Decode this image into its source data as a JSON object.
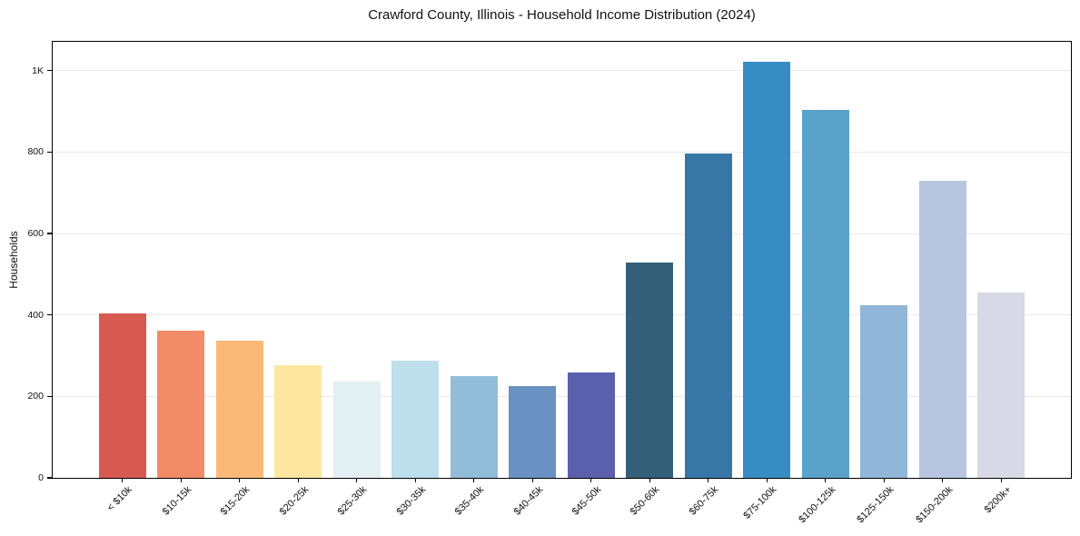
{
  "chart_data": {
    "type": "bar",
    "title": "Crawford County, Illinois - Household Income Distribution (2024)",
    "xlabel": "",
    "ylabel": "Households",
    "categories": [
      "< $10k",
      "$10-15k",
      "$15-20k",
      "$20-25k",
      "$25-30k",
      "$30-35k",
      "$35-40k",
      "$40-45k",
      "$45-50k",
      "$50-60k",
      "$60-75k",
      "$75-100k",
      "$100-125k",
      "$125-150k",
      "$150-200k",
      "$200k+"
    ],
    "values": [
      404,
      362,
      338,
      276,
      236,
      287,
      250,
      225,
      258,
      529,
      796,
      1021,
      904,
      425,
      729,
      456
    ],
    "bar_colors": [
      "#d65a52",
      "#f28b68",
      "#fbb978",
      "#fde79e",
      "#e2f0f3",
      "#bedfeb",
      "#93bcd9",
      "#6a91c2",
      "#5b60ad",
      "#335f79",
      "#3777a5",
      "#388cc4",
      "#5aa2ca",
      "#90b6d8",
      "#b7c6e0",
      "#d7d9e7"
    ],
    "yticks": [
      {
        "value": 0,
        "label": "0"
      },
      {
        "value": 200,
        "label": "200"
      },
      {
        "value": 400,
        "label": "400"
      },
      {
        "value": 600,
        "label": "600"
      },
      {
        "value": 800,
        "label": "800"
      },
      {
        "value": 1000,
        "label": "1K"
      }
    ],
    "ylim": [
      0,
      1071
    ],
    "xlim": [
      -1.19,
      16.19
    ],
    "bar_width_units": 0.8,
    "grid": "horizontal",
    "gridline_color": "#e9e9e9",
    "axis_color": "#000000",
    "background": "#ffffff",
    "legend": "none"
  }
}
